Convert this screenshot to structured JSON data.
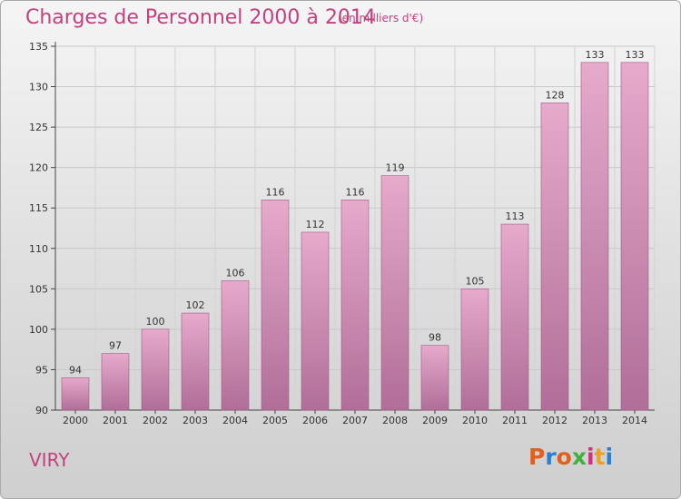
{
  "header": {
    "title": "Charges de Personnel 2000 à 2014",
    "subtitle": "(en milliers d'€)"
  },
  "footer": {
    "city": "VIRY",
    "logo": "Proxiti",
    "logo_colors": [
      "#e06020",
      "#2b7fd0",
      "#e06020",
      "#40b040",
      "#d03080",
      "#f0a020",
      "#2b7fd0"
    ]
  },
  "colors": {
    "title": "#c2427f",
    "bar_top": "#e6aacb",
    "bar_bottom": "#b06e98",
    "bar_stroke": "#a05a88"
  },
  "chart_data": {
    "type": "bar",
    "title": "Charges de Personnel 2000 à 2014",
    "subtitle": "(en milliers d'€)",
    "categories": [
      "2000",
      "2001",
      "2002",
      "2003",
      "2004",
      "2005",
      "2006",
      "2007",
      "2008",
      "2009",
      "2010",
      "2011",
      "2012",
      "2013",
      "2014"
    ],
    "values": [
      94,
      97,
      100,
      102,
      106,
      116,
      112,
      116,
      119,
      98,
      105,
      113,
      128,
      133,
      133
    ],
    "ylim": [
      90,
      135
    ],
    "yticks": [
      90,
      95,
      100,
      105,
      110,
      115,
      120,
      125,
      130,
      135
    ],
    "grid": true,
    "data_labels": true
  }
}
